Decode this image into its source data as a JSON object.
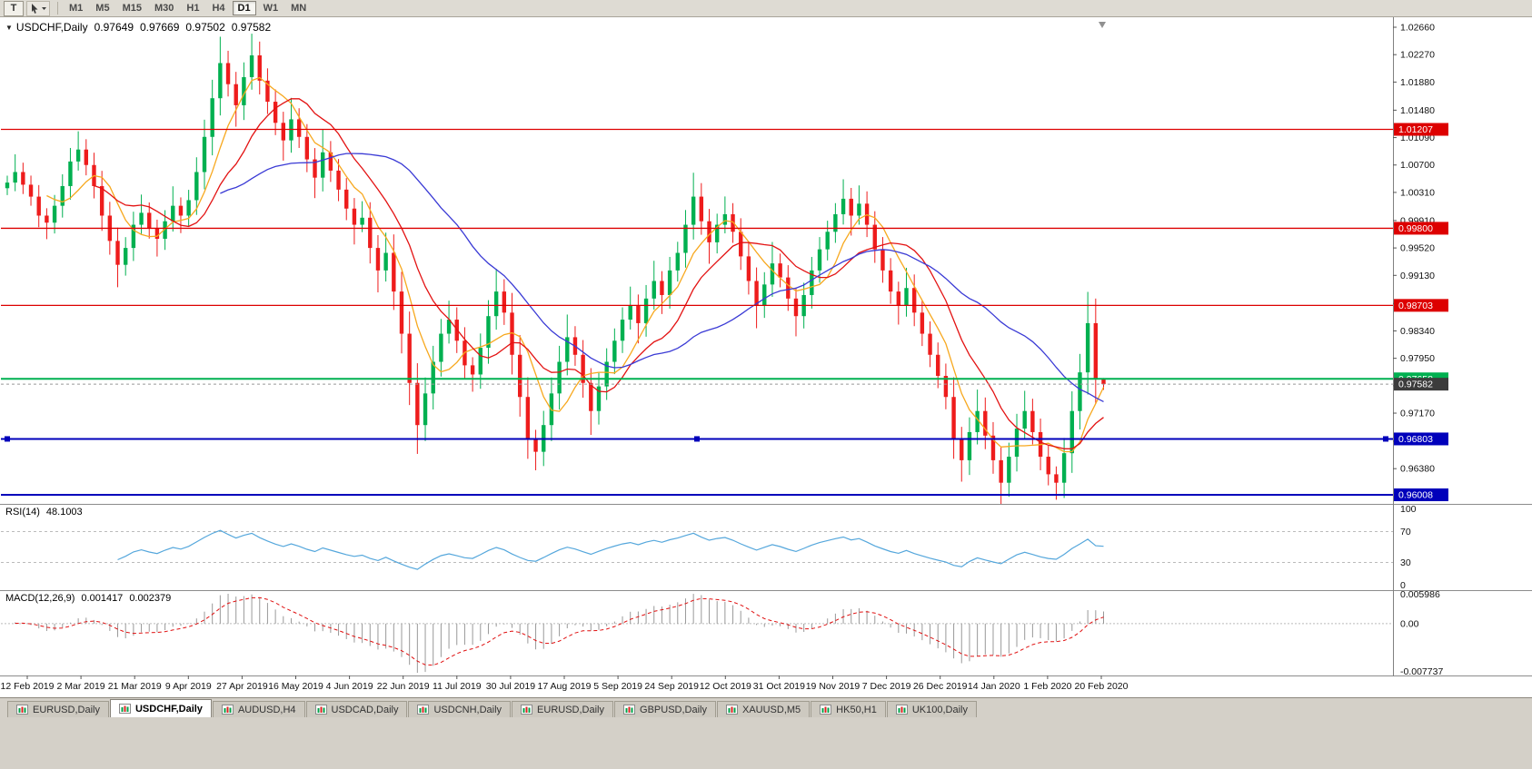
{
  "toolbar": {
    "t_button": "T",
    "cursor_tool_icon": "cursor-with-dropdown",
    "timeframes": [
      "M1",
      "M5",
      "M15",
      "M30",
      "H1",
      "H4",
      "D1",
      "W1",
      "MN"
    ],
    "active_timeframe": "D1"
  },
  "header": {
    "symbol": "USDCHF,Daily",
    "open": "0.97649",
    "high": "0.97669",
    "low": "0.97502",
    "close": "0.97582"
  },
  "indicators": {
    "rsi": {
      "name": "RSI(14)",
      "value": "48.1003",
      "levels": [
        70,
        30
      ],
      "axis_labels": [
        "100",
        "70",
        "30",
        "0"
      ],
      "line_color": "#55A7DC"
    },
    "macd": {
      "name": "MACD(12,26,9)",
      "main": "0.001417",
      "signal": "0.002379",
      "axis_labels": [
        "0.005986",
        "0.00",
        "-0.007737"
      ],
      "histogram_color": "#999999",
      "signal_color": "#E01010"
    }
  },
  "chart_data": {
    "type": "candlestick",
    "symbol": "USDCHF",
    "period": "Daily",
    "up_color": "#00B050",
    "down_color": "#EE1C1C",
    "last_candle_ohlc": [
      0.97649,
      0.97669,
      0.97502,
      0.97582
    ],
    "closes": [
      1.0045,
      1.006,
      1.0042,
      1.0025,
      0.9998,
      0.9988,
      1.0012,
      1.004,
      1.0075,
      1.0092,
      1.007,
      1.004,
      0.9998,
      0.9962,
      0.9928,
      0.9952,
      0.9985,
      1.0002,
      0.998,
      0.9965,
      0.999,
      1.0012,
      0.9998,
      1.002,
      1.006,
      1.011,
      1.0165,
      1.0215,
      1.0185,
      1.0155,
      1.0195,
      1.0226,
      1.019,
      1.016,
      1.013,
      1.0105,
      1.0135,
      1.011,
      1.0078,
      1.0052,
      1.0088,
      1.0062,
      1.0035,
      1.0008,
      0.9985,
      0.9995,
      0.9952,
      0.992,
      0.9945,
      0.989,
      0.983,
      0.976,
      0.97,
      0.9745,
      0.979,
      0.983,
      0.985,
      0.982,
      0.9785,
      0.9772,
      0.981,
      0.9855,
      0.989,
      0.986,
      0.98,
      0.974,
      0.968,
      0.9662,
      0.97,
      0.9745,
      0.979,
      0.9825,
      0.98,
      0.976,
      0.972,
      0.9755,
      0.979,
      0.982,
      0.985,
      0.987,
      0.9845,
      0.988,
      0.9905,
      0.9885,
      0.992,
      0.9945,
      0.9985,
      1.0025,
      0.999,
      0.996,
      0.9985,
      1.0,
      0.9975,
      0.994,
      0.9905,
      0.987,
      0.99,
      0.993,
      0.991,
      0.988,
      0.9855,
      0.9885,
      0.992,
      0.995,
      0.9975,
      1.0,
      1.0022,
      0.9998,
      1.0015,
      0.9985,
      0.995,
      0.992,
      0.989,
      0.987,
      0.9895,
      0.986,
      0.983,
      0.98,
      0.977,
      0.974,
      0.968,
      0.965,
      0.969,
      0.972,
      0.9685,
      0.965,
      0.9618,
      0.9655,
      0.9695,
      0.972,
      0.969,
      0.9655,
      0.963,
      0.9618,
      0.966,
      0.972,
      0.9775,
      0.9845,
      0.9765,
      0.97582
    ],
    "moving_averages": [
      {
        "period": 6,
        "color": "#F7A81E"
      },
      {
        "period": 12,
        "color": "#E31212"
      },
      {
        "period": 28,
        "color": "#3A3AD5"
      }
    ],
    "hlines": [
      {
        "price": 1.01207,
        "label": "1.01207",
        "color": "#DD0000",
        "width": 1.3
      },
      {
        "price": 0.998,
        "label": "0.99800",
        "color": "#DD0000",
        "width": 1.3
      },
      {
        "price": 0.98703,
        "label": "0.98703",
        "color": "#DD0000",
        "width": 1.3
      },
      {
        "price": 0.97658,
        "label": "0.97658",
        "color": "#00B050",
        "width": 2
      },
      {
        "price": 0.96803,
        "label": "0.96803",
        "color": "#0000BB",
        "width": 2,
        "selected": true
      },
      {
        "price": 0.96008,
        "label": "0.96008",
        "color": "#0000BB",
        "width": 2
      }
    ],
    "current_price": {
      "value": 0.97582,
      "label": "0.97582",
      "chip_color": "#3C3C3C"
    },
    "y_ticks": [
      "1.02660",
      "1.02270",
      "1.01880",
      "1.01480",
      "1.01090",
      "1.00700",
      "1.00310",
      "0.99910",
      "0.99520",
      "0.99130",
      "0.98730",
      "0.98340",
      "0.97950",
      "0.97560",
      "0.97170",
      "0.96770",
      "0.96380"
    ],
    "x_labels": [
      "12 Feb 2019",
      "2 Mar 2019",
      "21 Mar 2019",
      "9 Apr 2019",
      "27 Apr 2019",
      "16 May 2019",
      "4 Jun 2019",
      "22 Jun 2019",
      "11 Jul 2019",
      "30 Jul 2019",
      "17 Aug 2019",
      "5 Sep 2019",
      "24 Sep 2019",
      "12 Oct 2019",
      "31 Oct 2019",
      "19 Nov 2019",
      "7 Dec 2019",
      "26 Dec 2019",
      "14 Jan 2020",
      "1 Feb 2020",
      "20 Feb 2020"
    ]
  },
  "tabs": [
    {
      "label": "EURUSD,Daily",
      "active": false
    },
    {
      "label": "USDCHF,Daily",
      "active": true
    },
    {
      "label": "AUDUSD,H4",
      "active": false
    },
    {
      "label": "USDCAD,Daily",
      "active": false
    },
    {
      "label": "USDCNH,Daily",
      "active": false
    },
    {
      "label": "EURUSD,Daily",
      "active": false
    },
    {
      "label": "GBPUSD,Daily",
      "active": false
    },
    {
      "label": "XAUUSD,M5",
      "active": false
    },
    {
      "label": "HK50,H1",
      "active": false
    },
    {
      "label": "UK100,Daily",
      "active": false
    }
  ]
}
